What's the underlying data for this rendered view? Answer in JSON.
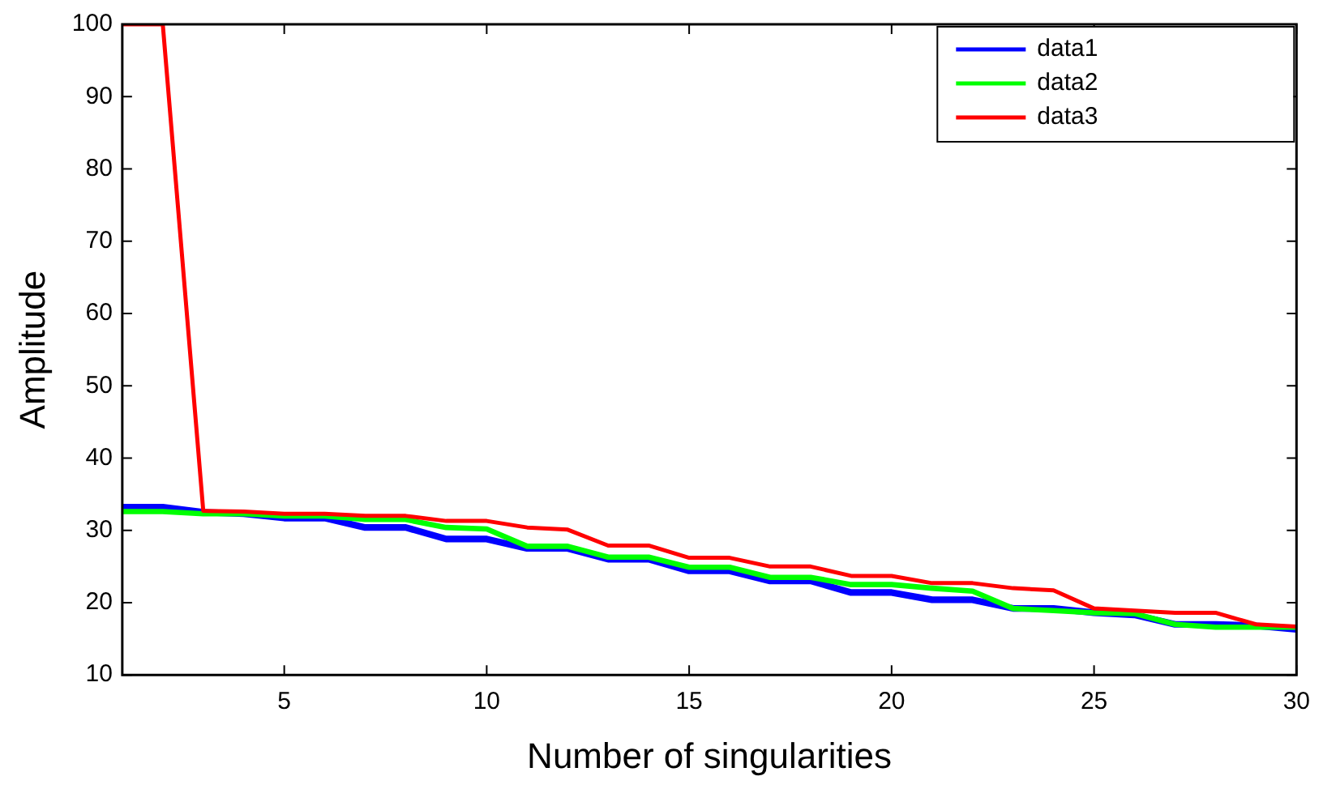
{
  "chart_data": {
    "type": "line",
    "xlabel": "Number of singularities",
    "ylabel": "Amplitude",
    "x": [
      1,
      2,
      3,
      4,
      5,
      6,
      7,
      8,
      9,
      10,
      11,
      12,
      13,
      14,
      15,
      16,
      17,
      18,
      19,
      20,
      21,
      22,
      23,
      24,
      25,
      26,
      27,
      28,
      29,
      30
    ],
    "xlim": [
      1,
      30
    ],
    "xticks": [
      5,
      10,
      15,
      20,
      25,
      30
    ],
    "ylim": [
      10,
      100
    ],
    "yticks": [
      10,
      20,
      30,
      40,
      50,
      60,
      70,
      80,
      90,
      100
    ],
    "grid": false,
    "legend": "top right",
    "marker": "none",
    "line_style": "solid",
    "series": [
      {
        "name": "data1",
        "color": "#0000ff",
        "values": [
          33.2,
          33.2,
          32.5,
          32.3,
          31.7,
          31.7,
          30.4,
          30.4,
          28.8,
          28.8,
          27.5,
          27.5,
          26,
          26,
          24.4,
          24.4,
          23,
          23,
          21.4,
          21.4,
          20.4,
          20.4,
          19.2,
          19.2,
          18.6,
          18.3,
          17,
          17,
          16.8,
          16.3
        ]
      },
      {
        "name": "data2",
        "color": "#00ff00",
        "values": [
          32.6,
          32.6,
          32.3,
          32.3,
          32,
          32,
          31.5,
          31.5,
          30.4,
          30.2,
          27.8,
          27.8,
          26.3,
          26.3,
          24.9,
          24.9,
          23.5,
          23.5,
          22.5,
          22.5,
          22,
          21.6,
          19.2,
          18.9,
          18.6,
          18.5,
          17,
          16.6,
          16.6,
          16.6
        ]
      },
      {
        "name": "data3",
        "color": "#ff0000",
        "values": [
          100,
          100,
          32.7,
          32.6,
          32.3,
          32.3,
          32,
          32,
          31.3,
          31.3,
          30.4,
          30.1,
          27.9,
          27.9,
          26.2,
          26.2,
          25,
          25,
          23.7,
          23.7,
          22.7,
          22.7,
          22,
          21.7,
          19.2,
          18.9,
          18.6,
          18.6,
          17,
          16.7
        ]
      }
    ]
  }
}
